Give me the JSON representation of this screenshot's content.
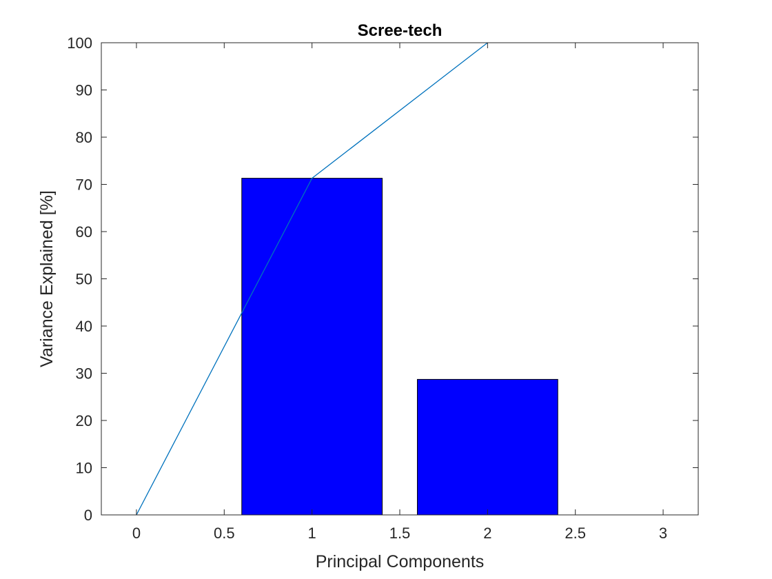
{
  "chart_data": {
    "type": "bar",
    "title": "Scree-tech",
    "xlabel": "Principal Components",
    "ylabel": "Variance Explained [%]",
    "xlim": [
      -0.2,
      3.2
    ],
    "ylim": [
      0,
      100
    ],
    "xticks": [
      0,
      0.5,
      1,
      1.5,
      2,
      2.5,
      3
    ],
    "xtick_labels": [
      "0",
      "0.5",
      "1",
      "1.5",
      "2",
      "2.5",
      "3"
    ],
    "yticks": [
      0,
      10,
      20,
      30,
      40,
      50,
      60,
      70,
      80,
      90,
      100
    ],
    "ytick_labels": [
      "0",
      "10",
      "20",
      "30",
      "40",
      "50",
      "60",
      "70",
      "80",
      "90",
      "100"
    ],
    "grid": false,
    "bars": {
      "categories": [
        1,
        2
      ],
      "values": [
        71.3,
        28.7
      ],
      "width": 0.8,
      "color": "#0000ff"
    },
    "line": {
      "x": [
        0,
        1,
        2
      ],
      "y": [
        0,
        71.3,
        100
      ],
      "color": "#0072bd"
    }
  }
}
